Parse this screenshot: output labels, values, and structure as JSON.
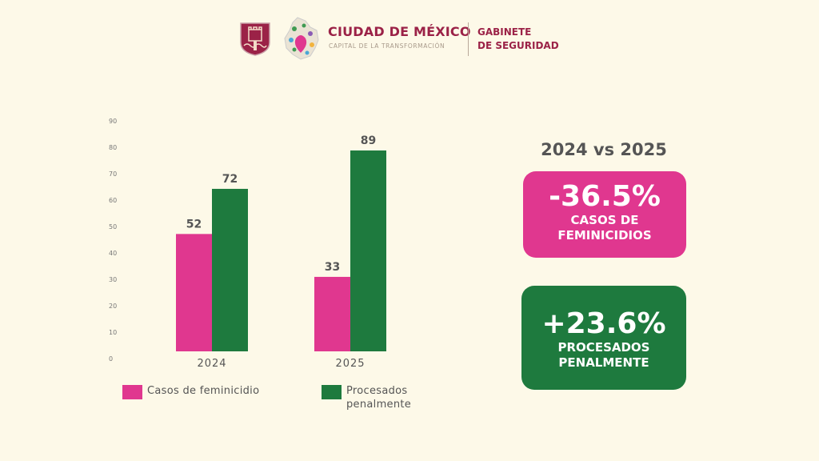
{
  "header": {
    "brand_title": "CIUDAD DE MÉXICO",
    "brand_subtitle": "CAPITAL DE LA TRANSFORMACIÓN",
    "department_line1": "GABINETE",
    "department_line2": "DE SEGURIDAD",
    "icons": [
      "cdmx-shield-icon",
      "cdmx-map-logo-icon"
    ]
  },
  "colors": {
    "background": "#fdf9e8",
    "brand": "#9b2247",
    "pink": "#e0378f",
    "green": "#1e7a3e",
    "text": "#555555"
  },
  "chart_data": {
    "type": "bar",
    "title": "",
    "xlabel": "",
    "ylabel": "",
    "categories": [
      "2024",
      "2025"
    ],
    "series": [
      {
        "name": "Casos de feminicidio",
        "values": [
          52,
          33
        ],
        "color": "#e0378f"
      },
      {
        "name": "Procesados penalmente",
        "values": [
          72,
          89
        ],
        "color": "#1e7a3e"
      }
    ],
    "yticks": [
      0,
      10,
      20,
      30,
      40,
      50,
      60,
      70,
      80,
      90
    ],
    "ylim": [
      0,
      90
    ],
    "grid": false,
    "data_labels": true,
    "legend": {
      "placement": "bottom",
      "entries": [
        "Casos de feminicidio",
        "Procesados penalmente"
      ]
    }
  },
  "summary": {
    "title": "2024 vs 2025",
    "cards": [
      {
        "value": "-36.5%",
        "label_line1": "CASOS DE",
        "label_line2": "FEMINICIDIOS",
        "color": "#e0378f"
      },
      {
        "value": "+23.6%",
        "label_line1": "PROCESADOS",
        "label_line2": "PENALMENTE",
        "color": "#1e7a3e"
      }
    ]
  }
}
